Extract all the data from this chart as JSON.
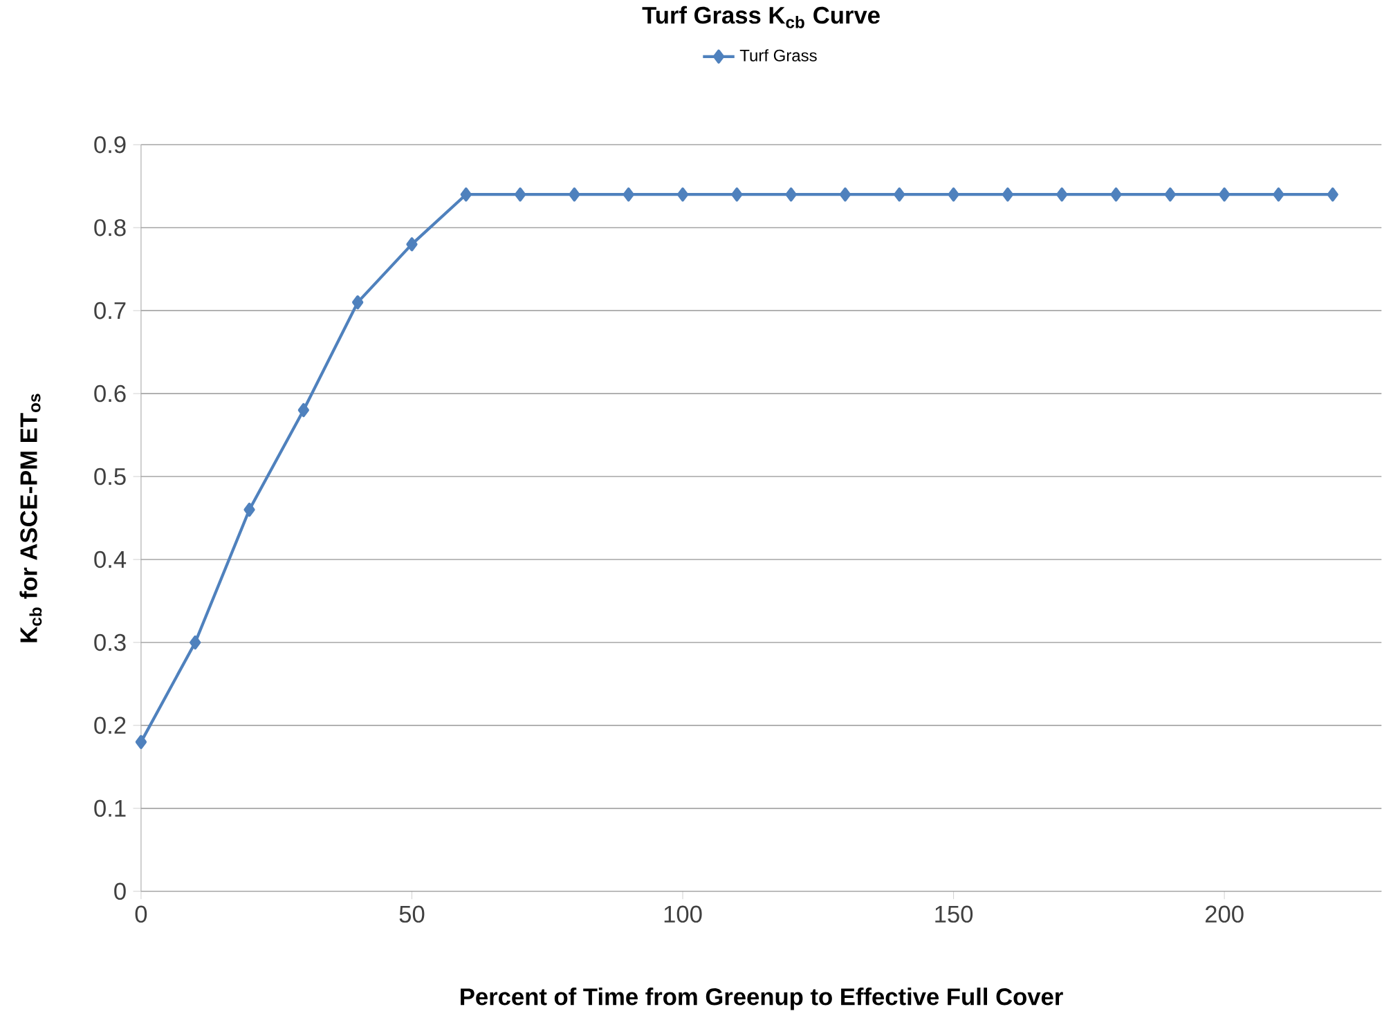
{
  "chart_data": {
    "type": "line",
    "title": "Turf Grass K$_{cb}$ Curve",
    "xlabel": "Percent of Time from Greenup to Effective Full Cover",
    "ylabel": "K$_{cb}$ for ASCE-PM ET$_{os}$",
    "x": [
      0,
      10,
      20,
      30,
      40,
      50,
      60,
      70,
      80,
      90,
      100,
      110,
      120,
      130,
      140,
      150,
      160,
      170,
      180,
      190,
      200,
      210,
      220
    ],
    "series": [
      {
        "name": "Turf Grass",
        "color": "#4f81bd",
        "values": [
          0.18,
          0.3,
          0.46,
          0.58,
          0.71,
          0.78,
          0.84,
          0.84,
          0.84,
          0.84,
          0.84,
          0.84,
          0.84,
          0.84,
          0.84,
          0.84,
          0.84,
          0.84,
          0.84,
          0.84,
          0.84,
          0.84,
          0.84
        ]
      }
    ],
    "xlim": [
      0,
      229
    ],
    "xticks": [
      0,
      50,
      100,
      150,
      200
    ],
    "ylim": [
      0,
      0.9
    ],
    "yticks": [
      0,
      0.1,
      0.2,
      0.3,
      0.4,
      0.5,
      0.6,
      0.7,
      0.8,
      0.9
    ],
    "grid": "y",
    "legend": "top",
    "marker": "diamond",
    "line_style": "solid"
  }
}
